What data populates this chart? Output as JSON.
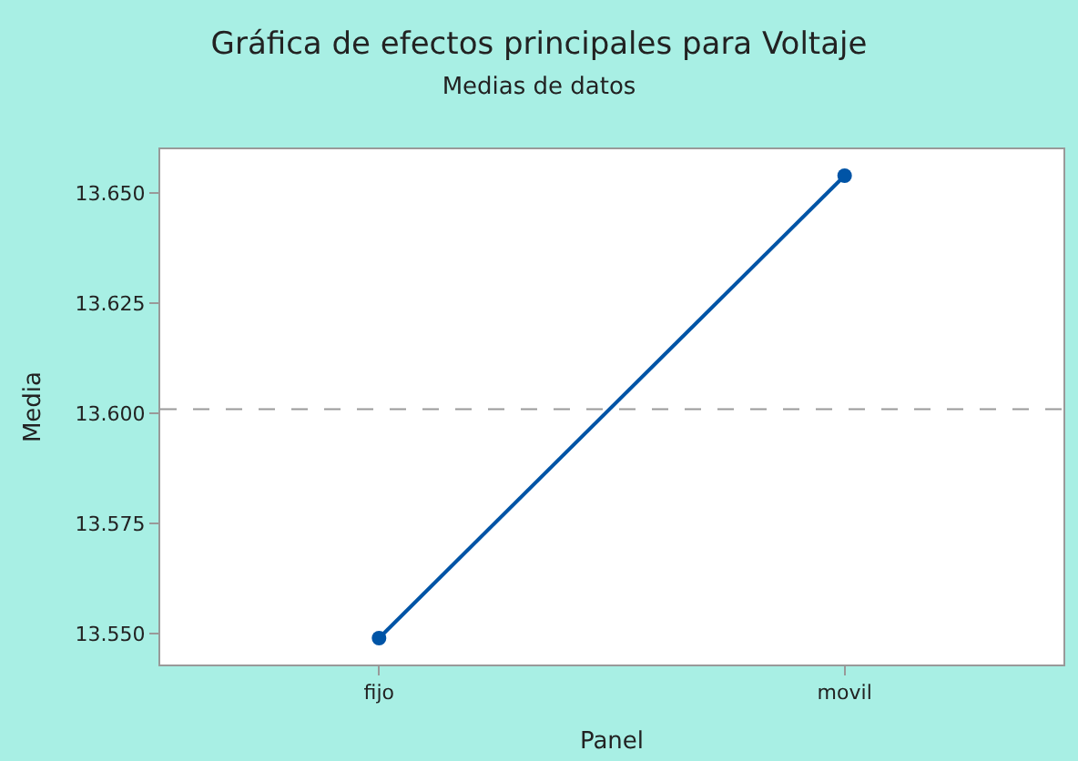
{
  "chart_data": {
    "type": "line",
    "title": "Gráfica de efectos principales para Voltaje",
    "subtitle": "Medias de datos",
    "xlabel": "Panel",
    "ylabel": "Media",
    "categories": [
      "fijo",
      "movil"
    ],
    "series": [
      {
        "color": "#0054a6",
        "values": [
          13.549,
          13.654
        ]
      }
    ],
    "ylim": [
      13.543,
      13.66
    ],
    "yticks": [
      {
        "value": 13.55,
        "label": "13.550"
      },
      {
        "value": 13.575,
        "label": "13.575"
      },
      {
        "value": 13.6,
        "label": "13.600"
      },
      {
        "value": 13.625,
        "label": "13.625"
      },
      {
        "value": 13.65,
        "label": "13.650"
      }
    ],
    "ref_lines": [
      {
        "axis": "y",
        "value": 13.601,
        "color": "#999999",
        "line_style": "dashed"
      }
    ],
    "marker": "circle",
    "line_style": "solid"
  }
}
